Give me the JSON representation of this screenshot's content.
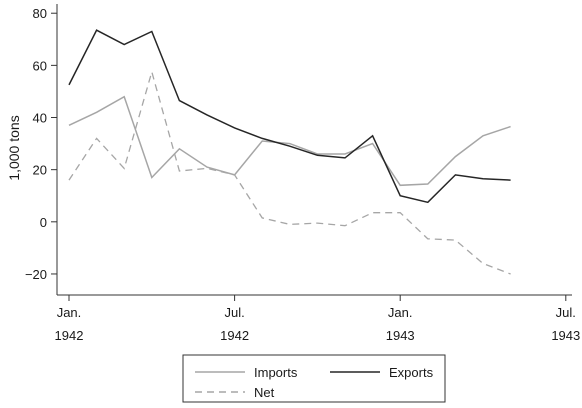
{
  "chart_data": {
    "type": "line",
    "title": "",
    "xlabel": "",
    "ylabel": "1,000 tons",
    "ylim": [
      -25,
      82
    ],
    "yticks": [
      -20,
      0,
      20,
      40,
      60,
      80
    ],
    "ytick_labels": [
      "−20",
      "0",
      "20",
      "40",
      "60",
      "80"
    ],
    "xlim": [
      "1942-01",
      "1943-07"
    ],
    "xticks": [
      {
        "date": "1942-01",
        "month": "Jan.",
        "year": "1942"
      },
      {
        "date": "1942-07",
        "month": "Jul.",
        "year": "1942"
      },
      {
        "date": "1943-01",
        "month": "Jan.",
        "year": "1943"
      },
      {
        "date": "1943-07",
        "month": "Jul.",
        "year": "1943"
      }
    ],
    "x": [
      "1942-01",
      "1942-02",
      "1942-03",
      "1942-04",
      "1942-05",
      "1942-06",
      "1942-07",
      "1942-08",
      "1942-09",
      "1942-10",
      "1942-11",
      "1942-12",
      "1943-01",
      "1943-02",
      "1943-03",
      "1943-04",
      "1943-05",
      "1943-06"
    ],
    "series": [
      {
        "name": "Imports",
        "color": "#a6a6a6",
        "dash": "solid",
        "values": [
          37,
          42,
          48,
          17,
          28,
          21,
          18,
          31,
          30,
          26,
          26,
          30,
          14,
          14.5,
          25,
          33,
          36.5,
          null
        ]
      },
      {
        "name": "Exports",
        "color": "#262626",
        "dash": "solid",
        "values": [
          52.5,
          73.5,
          68,
          73,
          46.5,
          41,
          36,
          32,
          29,
          25.5,
          24.5,
          33,
          10,
          7.5,
          18,
          16.5,
          16,
          null
        ]
      },
      {
        "name": "Net",
        "color": "#a6a6a6",
        "dash": "dashed",
        "values": [
          16,
          32,
          20.5,
          57.5,
          19.5,
          20.5,
          18,
          1.5,
          -1,
          -0.5,
          -1.5,
          3.5,
          3.5,
          -6.5,
          -7,
          -16,
          -20,
          null
        ]
      }
    ],
    "grid": false,
    "legend": {
      "placement": "bottom-center",
      "layout": "Imports and Exports on the first row, Net on the second row"
    }
  }
}
